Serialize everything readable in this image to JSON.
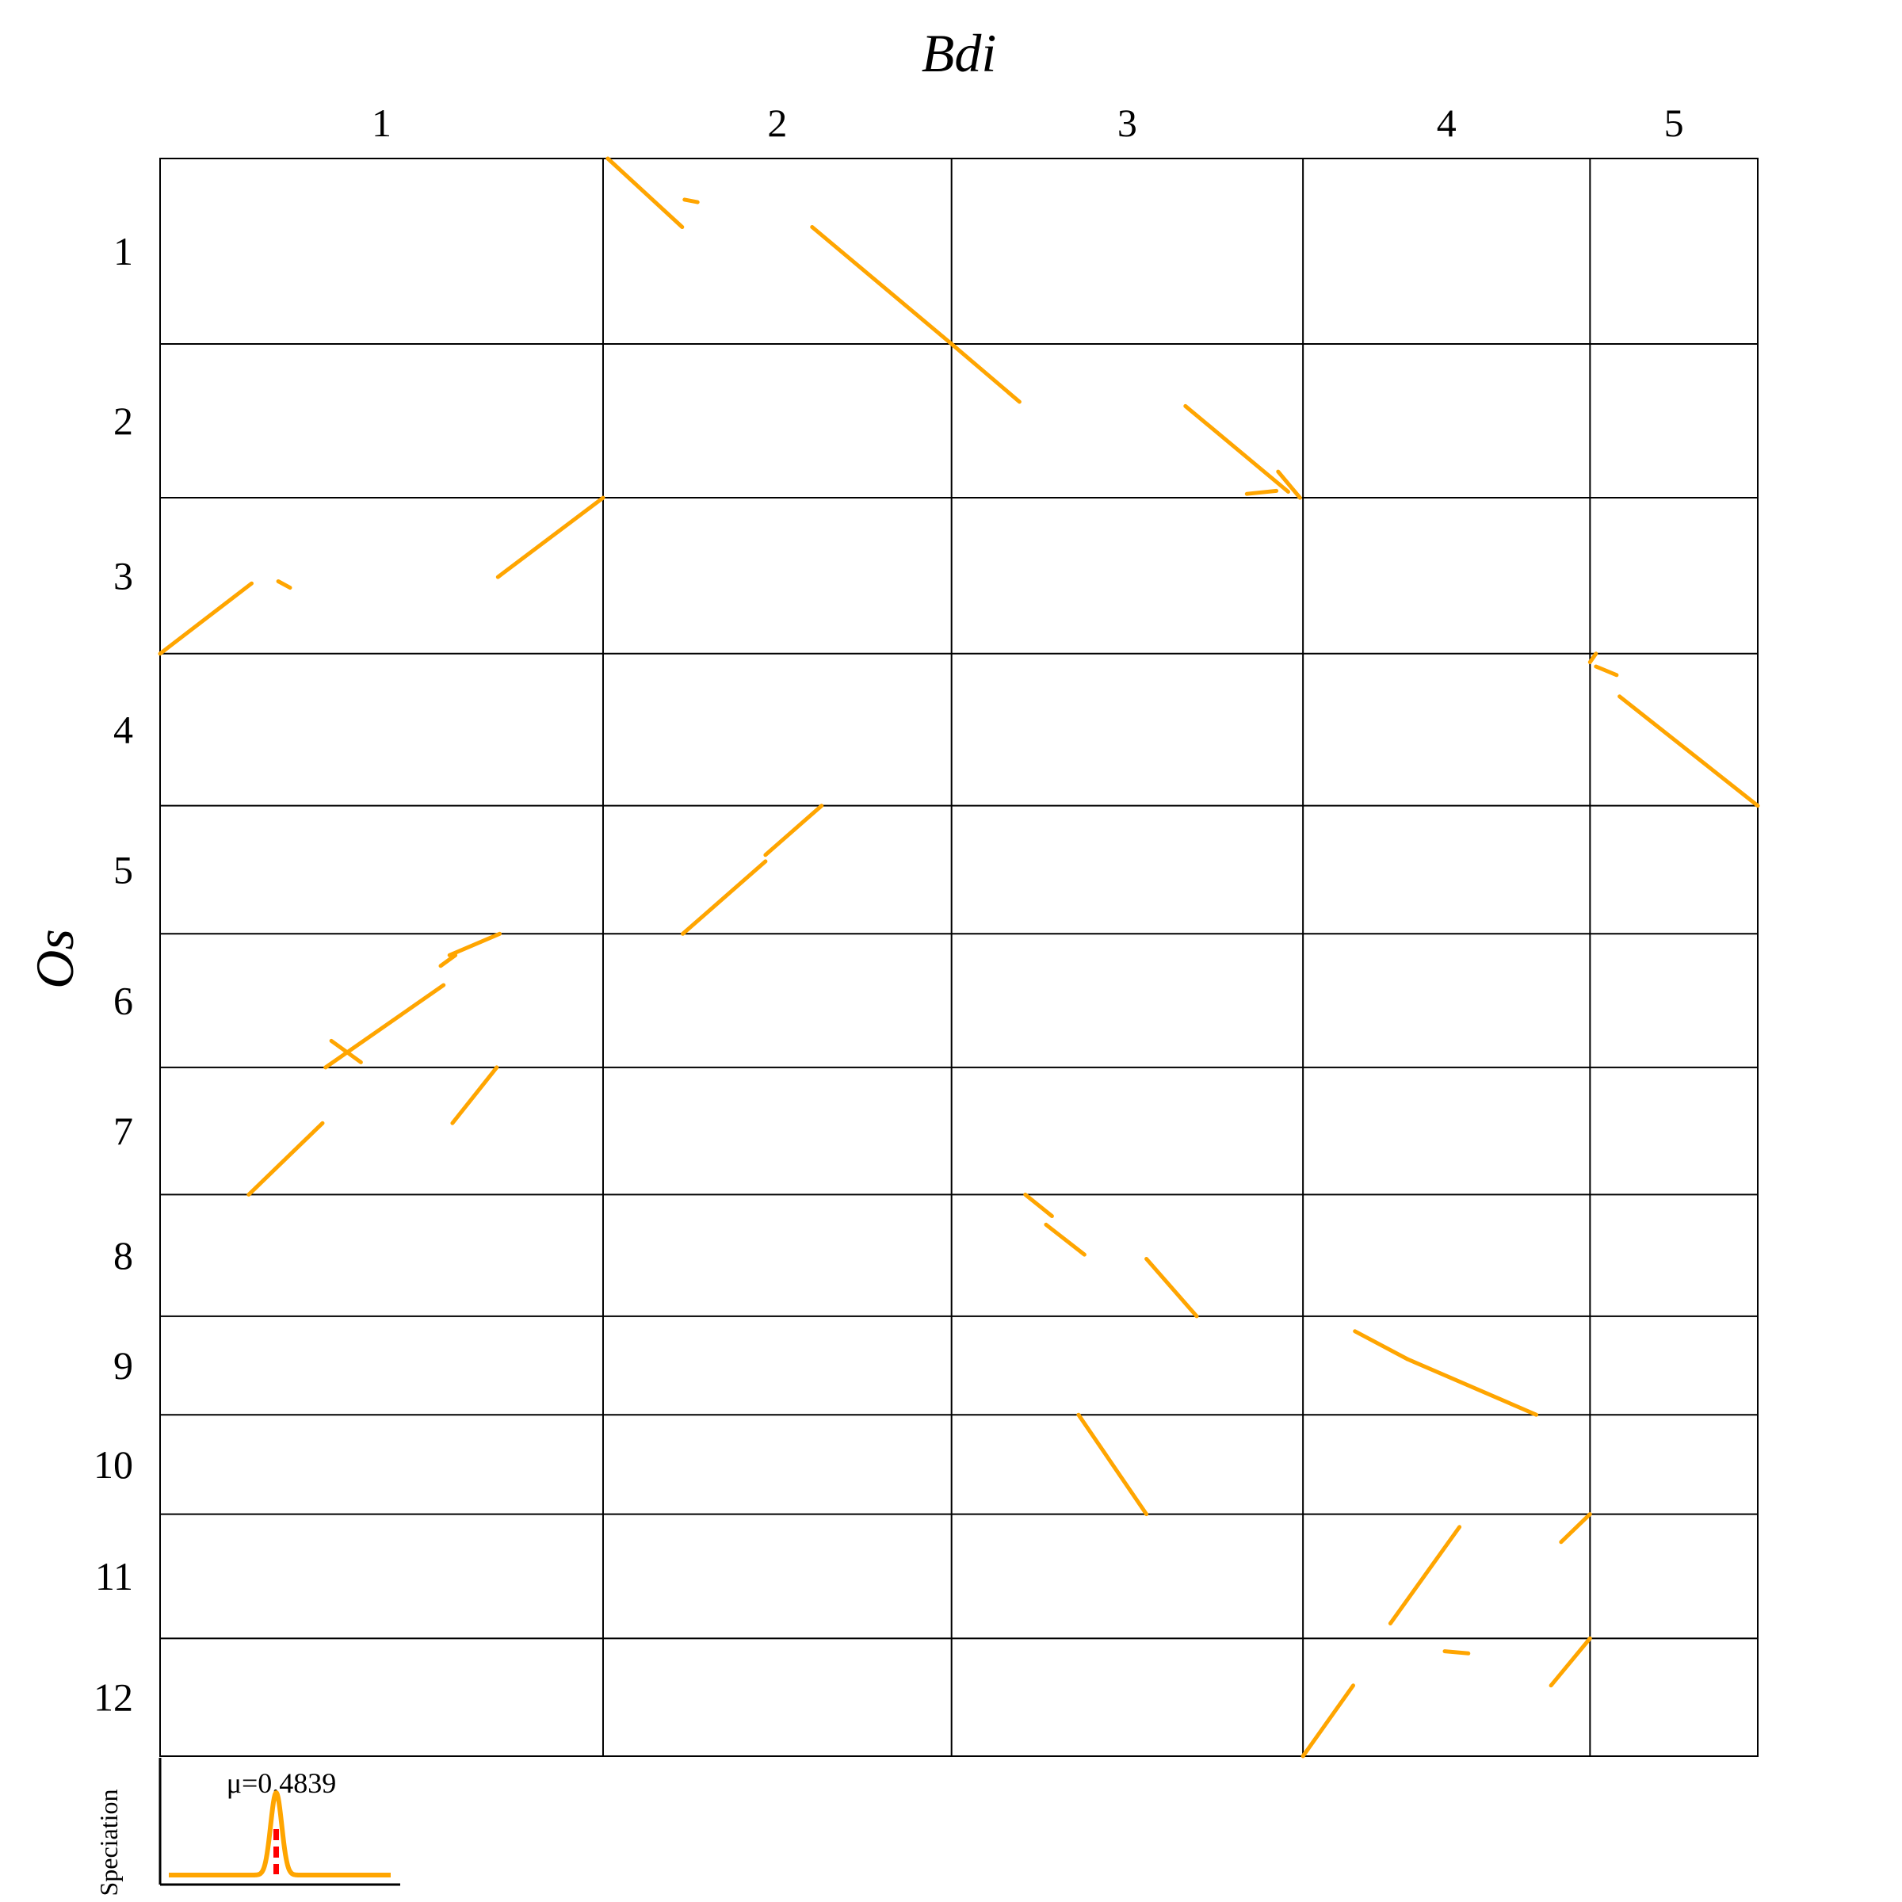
{
  "chart_data": {
    "type": "scatter",
    "subtype": "synteny-dotplot",
    "x_axis_title": "Bdi",
    "y_axis_title": "Os",
    "x_chromosomes": [
      {
        "label": "1",
        "length": 75
      },
      {
        "label": "2",
        "length": 59
      },
      {
        "label": "3",
        "length": 59.5
      },
      {
        "label": "4",
        "length": 48.6
      },
      {
        "label": "5",
        "length": 28.4
      }
    ],
    "y_chromosomes": [
      {
        "label": "1",
        "length": 43.3
      },
      {
        "label": "2",
        "length": 35.9
      },
      {
        "label": "3",
        "length": 36.4
      },
      {
        "label": "4",
        "length": 35.5
      },
      {
        "label": "5",
        "length": 29.9
      },
      {
        "label": "6",
        "length": 31.2
      },
      {
        "label": "7",
        "length": 29.7
      },
      {
        "label": "8",
        "length": 28.4
      },
      {
        "label": "9",
        "length": 23.0
      },
      {
        "label": "10",
        "length": 23.2
      },
      {
        "label": "11",
        "length": 29.0
      },
      {
        "label": "12",
        "length": 27.5
      }
    ],
    "block_color": "#FFA500",
    "blocks": [
      {
        "xc": "2",
        "yc": "1",
        "x": [
          0.8,
          13.4
        ],
        "y": [
          0.0,
          16.0
        ]
      },
      {
        "xc": "2",
        "yc": "1",
        "x": [
          13.8,
          16.0
        ],
        "y": [
          9.6,
          10.2
        ]
      },
      {
        "xc": "2",
        "yc": "1",
        "x": [
          35.4,
          59.0
        ],
        "y": [
          16.0,
          43.3
        ]
      },
      {
        "xc": "3",
        "yc": "2",
        "x": [
          0.0,
          11.5
        ],
        "y": [
          0.0,
          13.5
        ]
      },
      {
        "xc": "3",
        "yc": "2",
        "x": [
          39.6,
          57.0
        ],
        "y": [
          14.5,
          34.5
        ]
      },
      {
        "xc": "3",
        "yc": "2",
        "x": [
          55.3,
          59.0
        ],
        "y": [
          29.8,
          35.9
        ]
      },
      {
        "xc": "3",
        "yc": "2",
        "x": [
          50.0,
          55.0
        ],
        "y": [
          35.0,
          34.3
        ]
      },
      {
        "xc": "1",
        "yc": "3",
        "x": [
          0.0,
          15.5
        ],
        "y": [
          36.4,
          20.0
        ]
      },
      {
        "xc": "1",
        "yc": "3",
        "x": [
          57.2,
          75.0
        ],
        "y": [
          18.5,
          0.0
        ]
      },
      {
        "xc": "1",
        "yc": "3",
        "x": [
          20.0,
          22.0
        ],
        "y": [
          19.5,
          21.0
        ]
      },
      {
        "xc": "5",
        "yc": "4",
        "x": [
          0.0,
          1.0
        ],
        "y": [
          2.0,
          0.0
        ]
      },
      {
        "xc": "5",
        "yc": "4",
        "x": [
          1.0,
          4.5
        ],
        "y": [
          3.0,
          5.0
        ]
      },
      {
        "xc": "5",
        "yc": "4",
        "x": [
          5.0,
          28.4
        ],
        "y": [
          10.0,
          35.5
        ]
      },
      {
        "xc": "2",
        "yc": "5",
        "x": [
          13.5,
          27.5
        ],
        "y": [
          29.9,
          13.0
        ]
      },
      {
        "xc": "2",
        "yc": "5",
        "x": [
          27.5,
          37.0
        ],
        "y": [
          11.5,
          0.0
        ]
      },
      {
        "xc": "1",
        "yc": "6",
        "x": [
          28.0,
          48.0
        ],
        "y": [
          31.2,
          12.0
        ]
      },
      {
        "xc": "1",
        "yc": "6",
        "x": [
          47.5,
          50.0
        ],
        "y": [
          7.5,
          5.0
        ]
      },
      {
        "xc": "1",
        "yc": "6",
        "x": [
          49.0,
          57.5
        ],
        "y": [
          5.0,
          0.0
        ]
      },
      {
        "xc": "1",
        "yc": "6",
        "x": [
          29.0,
          34.0
        ],
        "y": [
          25.0,
          30.0
        ]
      },
      {
        "xc": "1",
        "yc": "7",
        "x": [
          15.0,
          27.5
        ],
        "y": [
          29.7,
          13.0
        ]
      },
      {
        "xc": "1",
        "yc": "7",
        "x": [
          49.5,
          57.0
        ],
        "y": [
          13.0,
          0.0
        ]
      },
      {
        "xc": "3",
        "yc": "8",
        "x": [
          12.5,
          17.0
        ],
        "y": [
          0.0,
          5.0
        ]
      },
      {
        "xc": "3",
        "yc": "8",
        "x": [
          16.0,
          22.5
        ],
        "y": [
          7.0,
          14.0
        ]
      },
      {
        "xc": "3",
        "yc": "8",
        "x": [
          33.0,
          41.5
        ],
        "y": [
          15.0,
          28.4
        ]
      },
      {
        "xc": "4",
        "yc": "9",
        "x": [
          8.8,
          17.7
        ],
        "y": [
          3.5,
          10.0
        ]
      },
      {
        "xc": "4",
        "yc": "9",
        "x": [
          17.7,
          39.5
        ],
        "y": [
          10.0,
          23.0
        ]
      },
      {
        "xc": "3",
        "yc": "10",
        "x": [
          21.5,
          33.0
        ],
        "y": [
          0.0,
          23.2
        ]
      },
      {
        "xc": "4",
        "yc": "11",
        "x": [
          14.8,
          26.5
        ],
        "y": [
          25.5,
          3.0
        ]
      },
      {
        "xc": "4",
        "yc": "11",
        "x": [
          43.7,
          48.6
        ],
        "y": [
          6.5,
          0.0
        ]
      },
      {
        "xc": "4",
        "yc": "12",
        "x": [
          0.0,
          8.5
        ],
        "y": [
          27.5,
          11.0
        ]
      },
      {
        "xc": "4",
        "yc": "12",
        "x": [
          24.0,
          28.0
        ],
        "y": [
          3.0,
          3.5
        ]
      },
      {
        "xc": "4",
        "yc": "12",
        "x": [
          42.0,
          48.6
        ],
        "y": [
          11.0,
          0.0
        ]
      }
    ],
    "speciation_ks": {
      "ylabel": "Speciation",
      "mean_label": "μ=0.4839",
      "mu": 0.4839,
      "x_range": [
        0,
        1
      ],
      "curve_color": "#FFA500",
      "mean_color": "#FF0000"
    }
  }
}
